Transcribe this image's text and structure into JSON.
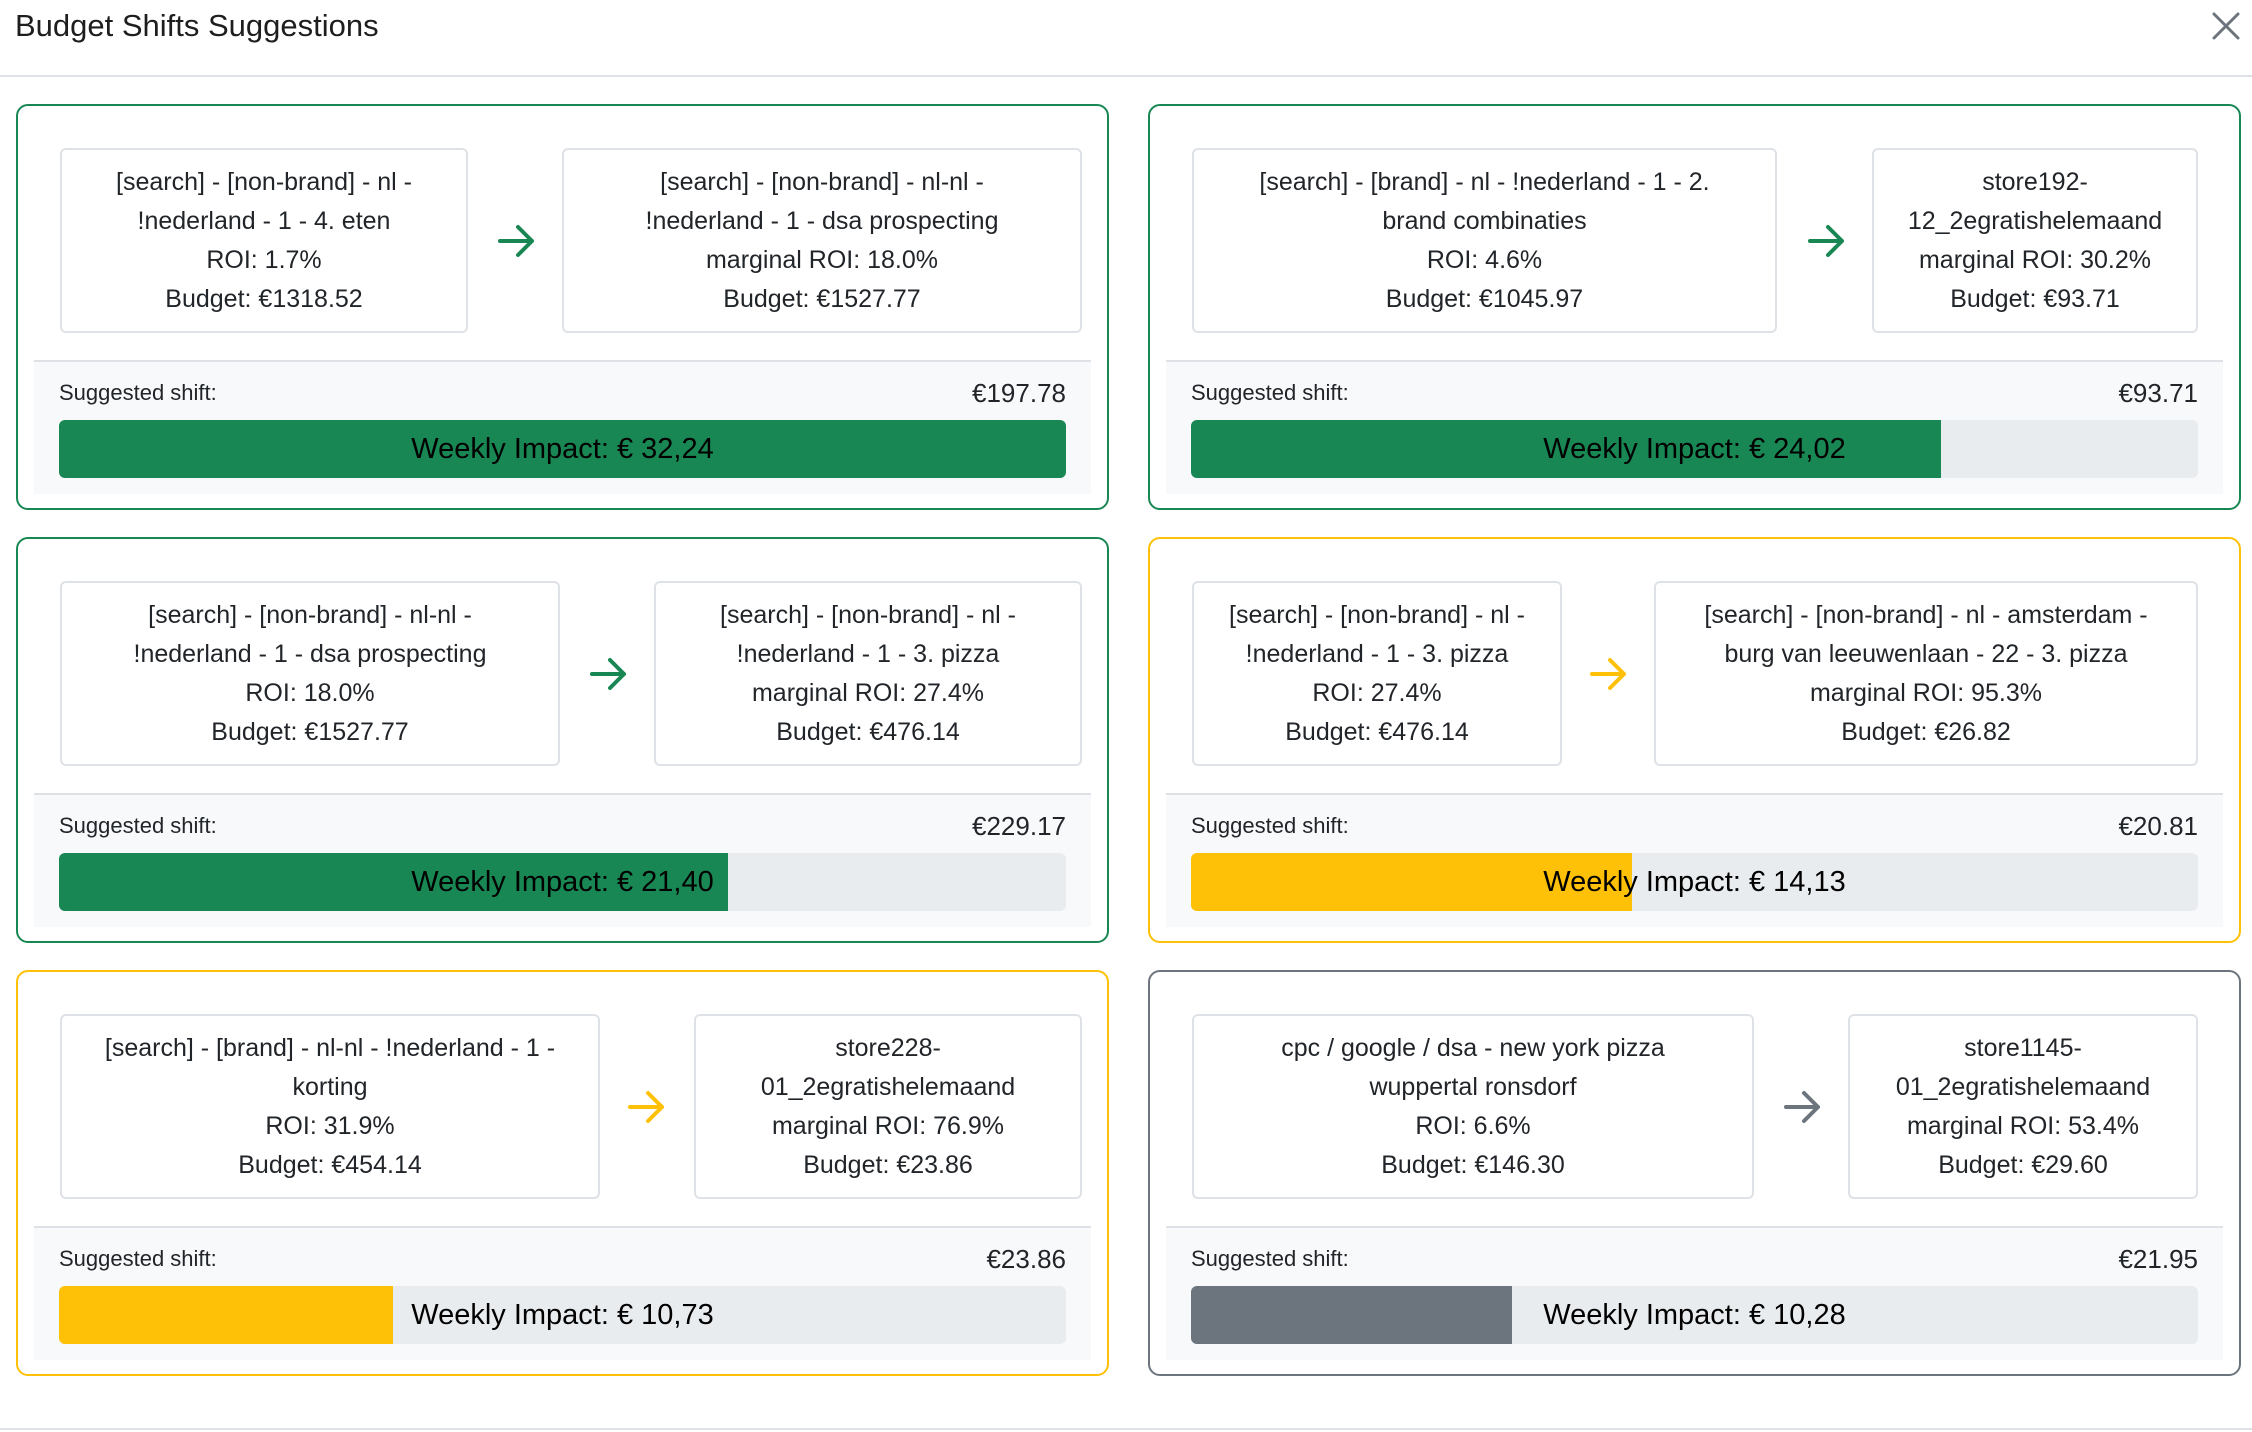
{
  "modal": {
    "title": "Budget Shifts Suggestions"
  },
  "colors": {
    "success": "#198754",
    "warning": "#ffc107",
    "secondary": "#6c757d",
    "track": "#e9ecef"
  },
  "labels": {
    "suggested_shift": "Suggested shift:"
  },
  "cards": [
    {
      "variant": "success",
      "from": {
        "name_lines": [
          "[search] - [non-brand] - nl -",
          "!nederland - 1 - 4. eten"
        ],
        "roi": "ROI: 1.7%",
        "budget": "Budget: €1318.52"
      },
      "to": {
        "name_lines": [
          "[search] - [non-brand] - nl-nl -",
          "!nederland - 1 - dsa prospecting"
        ],
        "roi": "marginal ROI: 18.0%",
        "budget": "Budget: €1527.77"
      },
      "shift": "€197.78",
      "impact": "Weekly Impact: € 32,24",
      "impact_fraction": 1.0
    },
    {
      "variant": "success",
      "from": {
        "name_lines": [
          "[search] - [brand] - nl - !nederland - 1 - 2.",
          "brand combinaties"
        ],
        "roi": "ROI: 4.6%",
        "budget": "Budget: €1045.97"
      },
      "to": {
        "name_lines": [
          "store192-",
          "12_2egratishelemaand"
        ],
        "roi": "marginal ROI: 30.2%",
        "budget": "Budget: €93.71"
      },
      "shift": "€93.71",
      "impact": "Weekly Impact: € 24,02",
      "impact_fraction": 0.745
    },
    {
      "variant": "success",
      "from": {
        "name_lines": [
          "[search] - [non-brand] - nl-nl -",
          "!nederland - 1 - dsa prospecting"
        ],
        "roi": "ROI: 18.0%",
        "budget": "Budget: €1527.77"
      },
      "to": {
        "name_lines": [
          "[search] - [non-brand] - nl -",
          "!nederland - 1 - 3. pizza"
        ],
        "roi": "marginal ROI: 27.4%",
        "budget": "Budget: €476.14"
      },
      "shift": "€229.17",
      "impact": "Weekly Impact: € 21,40",
      "impact_fraction": 0.664
    },
    {
      "variant": "warning",
      "from": {
        "name_lines": [
          "[search] - [non-brand] - nl -",
          "!nederland - 1 - 3. pizza"
        ],
        "roi": "ROI: 27.4%",
        "budget": "Budget: €476.14"
      },
      "to": {
        "name_lines": [
          "[search] - [non-brand] - nl - amsterdam -",
          "burg van leeuwenlaan - 22 - 3. pizza"
        ],
        "roi": "marginal ROI: 95.3%",
        "budget": "Budget: €26.82"
      },
      "shift": "€20.81",
      "impact": "Weekly Impact: € 14,13",
      "impact_fraction": 0.438
    },
    {
      "variant": "warning",
      "from": {
        "name_lines": [
          "[search] - [brand] - nl-nl - !nederland - 1 -",
          "korting"
        ],
        "roi": "ROI: 31.9%",
        "budget": "Budget: €454.14"
      },
      "to": {
        "name_lines": [
          "store228-",
          "01_2egratishelemaand"
        ],
        "roi": "marginal ROI: 76.9%",
        "budget": "Budget: €23.86"
      },
      "shift": "€23.86",
      "impact": "Weekly Impact: € 10,73",
      "impact_fraction": 0.332
    },
    {
      "variant": "secondary",
      "from": {
        "name_lines": [
          "cpc / google / dsa - new york pizza",
          "wuppertal ronsdorf"
        ],
        "roi": "ROI: 6.6%",
        "budget": "Budget: €146.30"
      },
      "to": {
        "name_lines": [
          "store1145-",
          "01_2egratishelemaand"
        ],
        "roi": "marginal ROI: 53.4%",
        "budget": "Budget: €29.60"
      },
      "shift": "€21.95",
      "impact": "Weekly Impact: € 10,28",
      "impact_fraction": 0.319
    }
  ]
}
